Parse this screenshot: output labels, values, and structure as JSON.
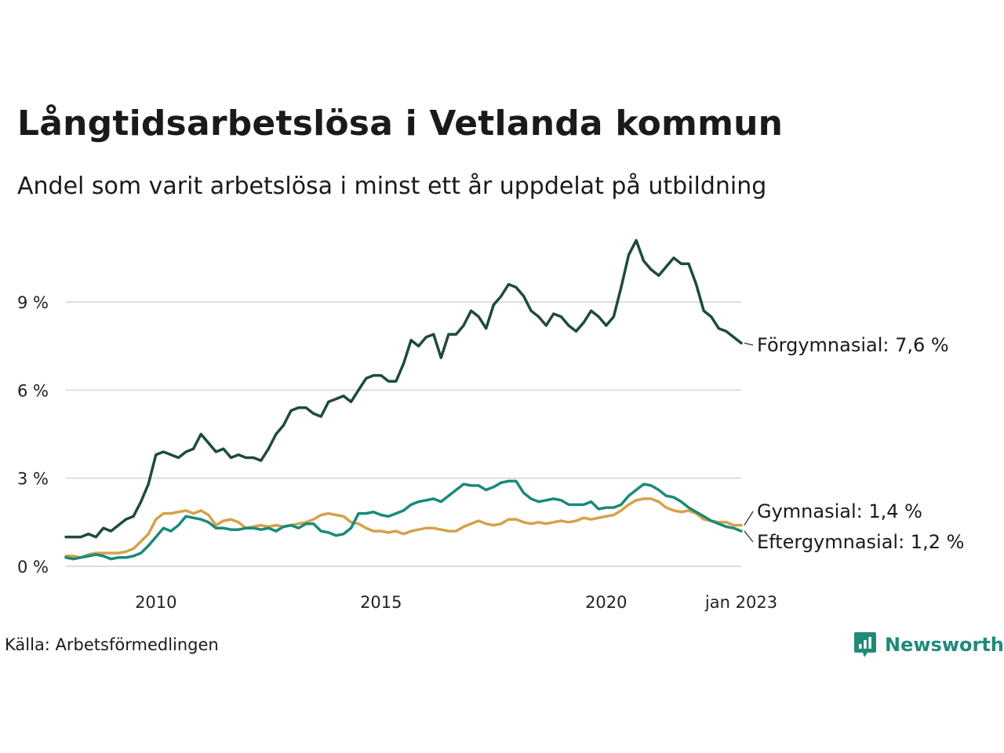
{
  "header": {
    "title": "Långtidsarbetslösa i Vetlanda kommun",
    "subtitle": "Andel som varit arbetslösa i minst ett år uppdelat på utbildning"
  },
  "footer": {
    "source": "Källa: Arbetsförmedlingen",
    "brand": "Newsworthy"
  },
  "colors": {
    "forgymnasial": "#1e4a40",
    "eftergymnasial": "#1a8a78",
    "gymnasial": "#d4a24c",
    "grid": "#dddddd",
    "brand": "#1f8a78"
  },
  "chart_data": {
    "type": "line",
    "x_start": "2008-01",
    "x_end": "2023-01",
    "ylim": [
      0,
      11.5
    ],
    "y_ticks": [
      {
        "value": 0,
        "label": "0 %"
      },
      {
        "value": 3,
        "label": "3 %"
      },
      {
        "value": 6,
        "label": "6 %"
      },
      {
        "value": 9,
        "label": "9 %"
      }
    ],
    "x_ticks": [
      {
        "value": "2010-01",
        "label": "2010"
      },
      {
        "value": "2015-01",
        "label": "2015"
      },
      {
        "value": "2020-01",
        "label": "2020"
      },
      {
        "value": "2023-01",
        "label": "jan 2023"
      }
    ],
    "grid": true,
    "series": [
      {
        "name": "Förgymnasial",
        "end_label": "Förgymnasial: 7,6 %",
        "color_key": "forgymnasial",
        "points": [
          [
            "2008-01",
            1.0
          ],
          [
            "2008-03",
            1.0
          ],
          [
            "2008-05",
            1.0
          ],
          [
            "2008-07",
            1.1
          ],
          [
            "2008-09",
            1.0
          ],
          [
            "2008-11",
            1.3
          ],
          [
            "2009-01",
            1.2
          ],
          [
            "2009-03",
            1.4
          ],
          [
            "2009-05",
            1.6
          ],
          [
            "2009-07",
            1.7
          ],
          [
            "2009-09",
            2.2
          ],
          [
            "2009-11",
            2.8
          ],
          [
            "2010-01",
            3.8
          ],
          [
            "2010-03",
            3.9
          ],
          [
            "2010-05",
            3.8
          ],
          [
            "2010-07",
            3.7
          ],
          [
            "2010-09",
            3.9
          ],
          [
            "2010-11",
            4.0
          ],
          [
            "2011-01",
            4.5
          ],
          [
            "2011-03",
            4.2
          ],
          [
            "2011-05",
            3.9
          ],
          [
            "2011-07",
            4.0
          ],
          [
            "2011-09",
            3.7
          ],
          [
            "2011-11",
            3.8
          ],
          [
            "2012-01",
            3.7
          ],
          [
            "2012-03",
            3.7
          ],
          [
            "2012-05",
            3.6
          ],
          [
            "2012-07",
            4.0
          ],
          [
            "2012-09",
            4.5
          ],
          [
            "2012-11",
            4.8
          ],
          [
            "2013-01",
            5.3
          ],
          [
            "2013-03",
            5.4
          ],
          [
            "2013-05",
            5.4
          ],
          [
            "2013-07",
            5.2
          ],
          [
            "2013-09",
            5.1
          ],
          [
            "2013-11",
            5.6
          ],
          [
            "2014-01",
            5.7
          ],
          [
            "2014-03",
            5.8
          ],
          [
            "2014-05",
            5.6
          ],
          [
            "2014-07",
            6.0
          ],
          [
            "2014-09",
            6.4
          ],
          [
            "2014-11",
            6.5
          ],
          [
            "2015-01",
            6.5
          ],
          [
            "2015-03",
            6.3
          ],
          [
            "2015-05",
            6.3
          ],
          [
            "2015-07",
            6.9
          ],
          [
            "2015-09",
            7.7
          ],
          [
            "2015-11",
            7.5
          ],
          [
            "2016-01",
            7.8
          ],
          [
            "2016-03",
            7.9
          ],
          [
            "2016-05",
            7.1
          ],
          [
            "2016-07",
            7.9
          ],
          [
            "2016-09",
            7.9
          ],
          [
            "2016-11",
            8.2
          ],
          [
            "2017-01",
            8.7
          ],
          [
            "2017-03",
            8.5
          ],
          [
            "2017-05",
            8.1
          ],
          [
            "2017-07",
            8.9
          ],
          [
            "2017-09",
            9.2
          ],
          [
            "2017-11",
            9.6
          ],
          [
            "2018-01",
            9.5
          ],
          [
            "2018-03",
            9.2
          ],
          [
            "2018-05",
            8.7
          ],
          [
            "2018-07",
            8.5
          ],
          [
            "2018-09",
            8.2
          ],
          [
            "2018-11",
            8.6
          ],
          [
            "2019-01",
            8.5
          ],
          [
            "2019-03",
            8.2
          ],
          [
            "2019-05",
            8.0
          ],
          [
            "2019-07",
            8.3
          ],
          [
            "2019-09",
            8.7
          ],
          [
            "2019-11",
            8.5
          ],
          [
            "2020-01",
            8.2
          ],
          [
            "2020-03",
            8.5
          ],
          [
            "2020-05",
            9.5
          ],
          [
            "2020-07",
            10.6
          ],
          [
            "2020-09",
            11.1
          ],
          [
            "2020-11",
            10.4
          ],
          [
            "2021-01",
            10.1
          ],
          [
            "2021-03",
            9.9
          ],
          [
            "2021-05",
            10.2
          ],
          [
            "2021-07",
            10.5
          ],
          [
            "2021-09",
            10.3
          ],
          [
            "2021-11",
            10.3
          ],
          [
            "2022-01",
            9.6
          ],
          [
            "2022-03",
            8.7
          ],
          [
            "2022-05",
            8.5
          ],
          [
            "2022-07",
            8.1
          ],
          [
            "2022-09",
            8.0
          ],
          [
            "2022-11",
            7.8
          ],
          [
            "2023-01",
            7.6
          ]
        ]
      },
      {
        "name": "Gymnasial",
        "end_label": "Gymnasial: 1,4 %",
        "color_key": "gymnasial",
        "points": [
          [
            "2008-01",
            0.35
          ],
          [
            "2008-03",
            0.35
          ],
          [
            "2008-05",
            0.3
          ],
          [
            "2008-07",
            0.4
          ],
          [
            "2008-09",
            0.45
          ],
          [
            "2008-11",
            0.45
          ],
          [
            "2009-01",
            0.45
          ],
          [
            "2009-03",
            0.45
          ],
          [
            "2009-05",
            0.5
          ],
          [
            "2009-07",
            0.6
          ],
          [
            "2009-09",
            0.85
          ],
          [
            "2009-11",
            1.1
          ],
          [
            "2010-01",
            1.6
          ],
          [
            "2010-03",
            1.8
          ],
          [
            "2010-05",
            1.8
          ],
          [
            "2010-07",
            1.85
          ],
          [
            "2010-09",
            1.9
          ],
          [
            "2010-11",
            1.8
          ],
          [
            "2011-01",
            1.9
          ],
          [
            "2011-03",
            1.75
          ],
          [
            "2011-05",
            1.4
          ],
          [
            "2011-07",
            1.55
          ],
          [
            "2011-09",
            1.6
          ],
          [
            "2011-11",
            1.5
          ],
          [
            "2012-01",
            1.3
          ],
          [
            "2012-03",
            1.35
          ],
          [
            "2012-05",
            1.4
          ],
          [
            "2012-07",
            1.35
          ],
          [
            "2012-09",
            1.4
          ],
          [
            "2012-11",
            1.35
          ],
          [
            "2013-01",
            1.4
          ],
          [
            "2013-03",
            1.45
          ],
          [
            "2013-05",
            1.5
          ],
          [
            "2013-07",
            1.6
          ],
          [
            "2013-09",
            1.75
          ],
          [
            "2013-11",
            1.8
          ],
          [
            "2014-01",
            1.75
          ],
          [
            "2014-03",
            1.7
          ],
          [
            "2014-05",
            1.5
          ],
          [
            "2014-07",
            1.45
          ],
          [
            "2014-09",
            1.3
          ],
          [
            "2014-11",
            1.2
          ],
          [
            "2015-01",
            1.2
          ],
          [
            "2015-03",
            1.15
          ],
          [
            "2015-05",
            1.2
          ],
          [
            "2015-07",
            1.1
          ],
          [
            "2015-09",
            1.2
          ],
          [
            "2015-11",
            1.25
          ],
          [
            "2016-01",
            1.3
          ],
          [
            "2016-03",
            1.3
          ],
          [
            "2016-05",
            1.25
          ],
          [
            "2016-07",
            1.2
          ],
          [
            "2016-09",
            1.2
          ],
          [
            "2016-11",
            1.35
          ],
          [
            "2017-01",
            1.45
          ],
          [
            "2017-03",
            1.55
          ],
          [
            "2017-05",
            1.45
          ],
          [
            "2017-07",
            1.4
          ],
          [
            "2017-09",
            1.45
          ],
          [
            "2017-11",
            1.6
          ],
          [
            "2018-01",
            1.6
          ],
          [
            "2018-03",
            1.5
          ],
          [
            "2018-05",
            1.45
          ],
          [
            "2018-07",
            1.5
          ],
          [
            "2018-09",
            1.45
          ],
          [
            "2018-11",
            1.5
          ],
          [
            "2019-01",
            1.55
          ],
          [
            "2019-03",
            1.5
          ],
          [
            "2019-05",
            1.55
          ],
          [
            "2019-07",
            1.65
          ],
          [
            "2019-09",
            1.6
          ],
          [
            "2019-11",
            1.65
          ],
          [
            "2020-01",
            1.7
          ],
          [
            "2020-03",
            1.75
          ],
          [
            "2020-05",
            1.9
          ],
          [
            "2020-07",
            2.1
          ],
          [
            "2020-09",
            2.25
          ],
          [
            "2020-11",
            2.3
          ],
          [
            "2021-01",
            2.3
          ],
          [
            "2021-03",
            2.2
          ],
          [
            "2021-05",
            2.0
          ],
          [
            "2021-07",
            1.9
          ],
          [
            "2021-09",
            1.85
          ],
          [
            "2021-11",
            1.9
          ],
          [
            "2022-01",
            1.8
          ],
          [
            "2022-03",
            1.6
          ],
          [
            "2022-05",
            1.55
          ],
          [
            "2022-07",
            1.5
          ],
          [
            "2022-09",
            1.5
          ],
          [
            "2022-11",
            1.4
          ],
          [
            "2023-01",
            1.4
          ]
        ]
      },
      {
        "name": "Eftergymnasial",
        "end_label": "Eftergymnasial: 1,2 %",
        "color_key": "eftergymnasial",
        "points": [
          [
            "2008-01",
            0.3
          ],
          [
            "2008-03",
            0.25
          ],
          [
            "2008-05",
            0.3
          ],
          [
            "2008-07",
            0.35
          ],
          [
            "2008-09",
            0.4
          ],
          [
            "2008-11",
            0.35
          ],
          [
            "2009-01",
            0.25
          ],
          [
            "2009-03",
            0.3
          ],
          [
            "2009-05",
            0.3
          ],
          [
            "2009-07",
            0.35
          ],
          [
            "2009-09",
            0.45
          ],
          [
            "2009-11",
            0.7
          ],
          [
            "2010-01",
            1.0
          ],
          [
            "2010-03",
            1.3
          ],
          [
            "2010-05",
            1.2
          ],
          [
            "2010-07",
            1.4
          ],
          [
            "2010-09",
            1.7
          ],
          [
            "2010-11",
            1.65
          ],
          [
            "2011-01",
            1.6
          ],
          [
            "2011-03",
            1.5
          ],
          [
            "2011-05",
            1.3
          ],
          [
            "2011-07",
            1.3
          ],
          [
            "2011-09",
            1.25
          ],
          [
            "2011-11",
            1.25
          ],
          [
            "2012-01",
            1.3
          ],
          [
            "2012-03",
            1.3
          ],
          [
            "2012-05",
            1.25
          ],
          [
            "2012-07",
            1.3
          ],
          [
            "2012-09",
            1.2
          ],
          [
            "2012-11",
            1.35
          ],
          [
            "2013-01",
            1.4
          ],
          [
            "2013-03",
            1.3
          ],
          [
            "2013-05",
            1.45
          ],
          [
            "2013-07",
            1.45
          ],
          [
            "2013-09",
            1.2
          ],
          [
            "2013-11",
            1.15
          ],
          [
            "2014-01",
            1.05
          ],
          [
            "2014-03",
            1.1
          ],
          [
            "2014-05",
            1.3
          ],
          [
            "2014-07",
            1.8
          ],
          [
            "2014-09",
            1.8
          ],
          [
            "2014-11",
            1.85
          ],
          [
            "2015-01",
            1.75
          ],
          [
            "2015-03",
            1.7
          ],
          [
            "2015-05",
            1.8
          ],
          [
            "2015-07",
            1.9
          ],
          [
            "2015-09",
            2.1
          ],
          [
            "2015-11",
            2.2
          ],
          [
            "2016-01",
            2.25
          ],
          [
            "2016-03",
            2.3
          ],
          [
            "2016-05",
            2.2
          ],
          [
            "2016-07",
            2.4
          ],
          [
            "2016-09",
            2.6
          ],
          [
            "2016-11",
            2.8
          ],
          [
            "2017-01",
            2.75
          ],
          [
            "2017-03",
            2.75
          ],
          [
            "2017-05",
            2.6
          ],
          [
            "2017-07",
            2.7
          ],
          [
            "2017-09",
            2.85
          ],
          [
            "2017-11",
            2.9
          ],
          [
            "2018-01",
            2.9
          ],
          [
            "2018-03",
            2.5
          ],
          [
            "2018-05",
            2.3
          ],
          [
            "2018-07",
            2.2
          ],
          [
            "2018-09",
            2.25
          ],
          [
            "2018-11",
            2.3
          ],
          [
            "2019-01",
            2.25
          ],
          [
            "2019-03",
            2.1
          ],
          [
            "2019-05",
            2.1
          ],
          [
            "2019-07",
            2.1
          ],
          [
            "2019-09",
            2.2
          ],
          [
            "2019-11",
            1.95
          ],
          [
            "2020-01",
            2.0
          ],
          [
            "2020-03",
            2.0
          ],
          [
            "2020-05",
            2.1
          ],
          [
            "2020-07",
            2.4
          ],
          [
            "2020-09",
            2.6
          ],
          [
            "2020-11",
            2.8
          ],
          [
            "2021-01",
            2.75
          ],
          [
            "2021-03",
            2.6
          ],
          [
            "2021-05",
            2.4
          ],
          [
            "2021-07",
            2.35
          ],
          [
            "2021-09",
            2.2
          ],
          [
            "2021-11",
            2.0
          ],
          [
            "2022-01",
            1.85
          ],
          [
            "2022-03",
            1.7
          ],
          [
            "2022-05",
            1.55
          ],
          [
            "2022-07",
            1.45
          ],
          [
            "2022-09",
            1.35
          ],
          [
            "2022-11",
            1.3
          ],
          [
            "2023-01",
            1.2
          ]
        ]
      }
    ]
  }
}
